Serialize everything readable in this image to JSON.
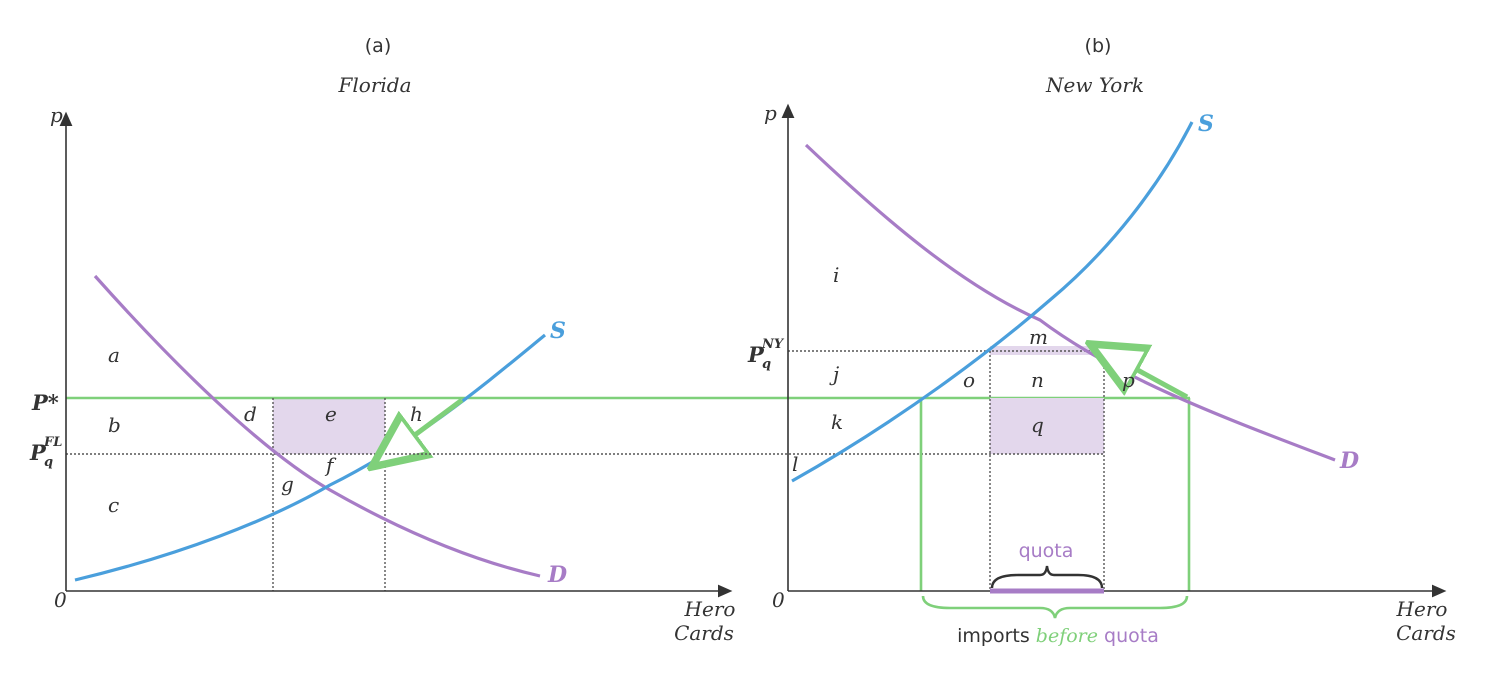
{
  "panels": {
    "left": {
      "tag": "(a)",
      "title": "Florida",
      "axis_y": "p",
      "axis_origin": "0",
      "axis_x_line1": "Hero",
      "axis_x_line2": "Cards",
      "supply_label": "S",
      "demand_label": "D",
      "price_world": "P*",
      "price_quota_main": "P",
      "price_quota_sub": "q",
      "price_quota_sup": "FL",
      "areas": [
        "a",
        "b",
        "c",
        "d",
        "e",
        "f",
        "g",
        "h"
      ]
    },
    "right": {
      "tag": "(b)",
      "title": "New York",
      "axis_y": "p",
      "axis_origin": "0",
      "axis_x_line1": "Hero",
      "axis_x_line2": "Cards",
      "supply_label": "S",
      "demand_label": "D",
      "price_quota_main": "P",
      "price_quota_sub": "q",
      "price_quota_sup": "NY",
      "areas": [
        "i",
        "j",
        "k",
        "l",
        "m",
        "n",
        "o",
        "p",
        "q"
      ],
      "quota_label": "quota",
      "imports_label_1": "imports ",
      "imports_label_2": "before",
      "imports_label_3": " quota"
    }
  },
  "colors": {
    "supply": "#4a9fdc",
    "demand": "#a77cc6",
    "world_price": "#7fd07a",
    "shade": "#e3d7ec"
  }
}
